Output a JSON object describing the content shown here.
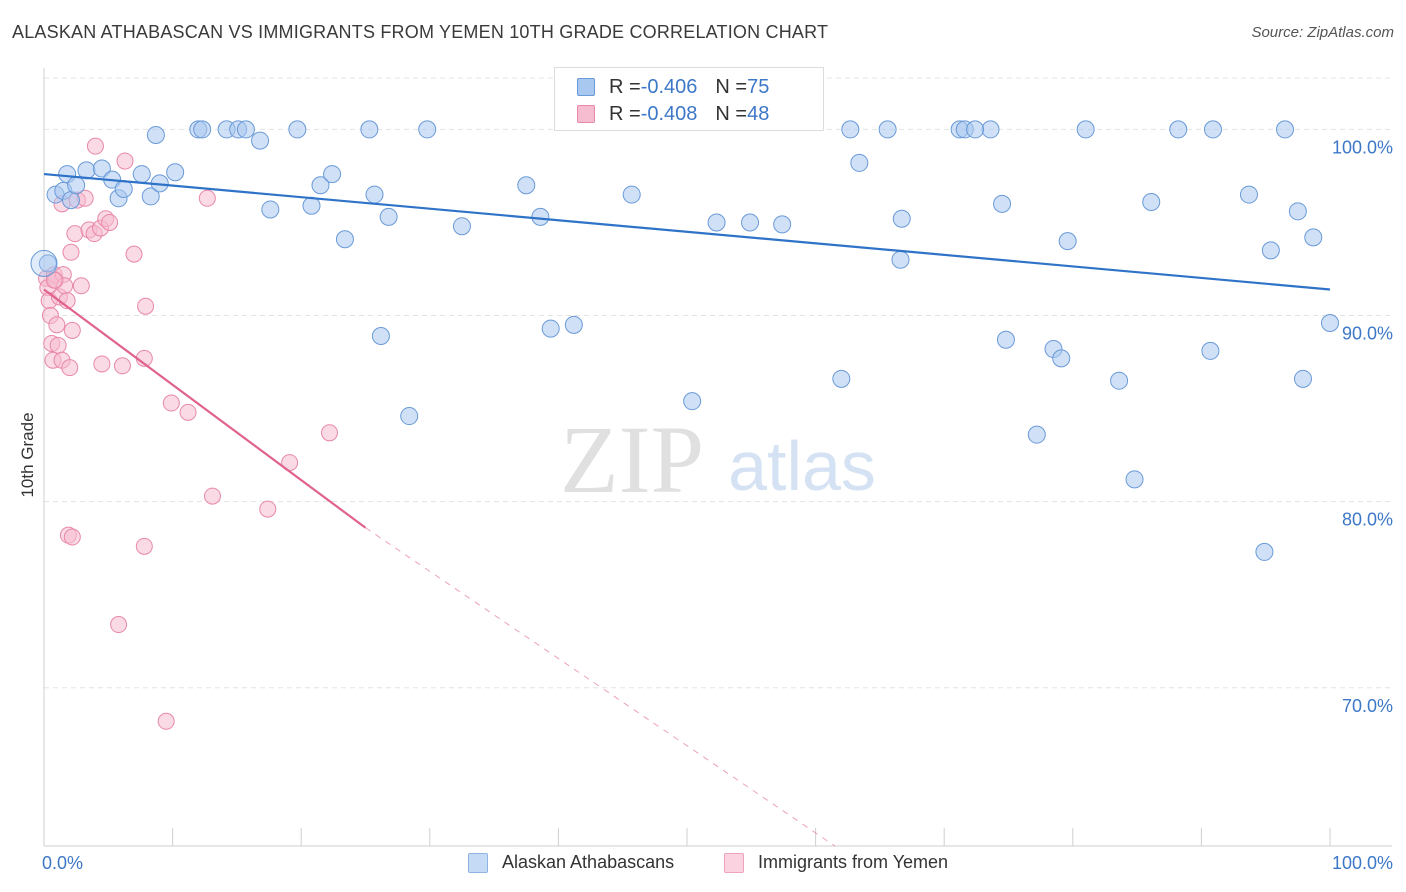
{
  "title": "ALASKAN ATHABASCAN VS IMMIGRANTS FROM YEMEN 10TH GRADE CORRELATION CHART",
  "source": "Source: ZipAtlas.com",
  "watermark": {
    "zip": "ZIP",
    "atlas": "atlas"
  },
  "legend": {
    "row1": {
      "r_label": "R = ",
      "r_value": "-0.406",
      "n_label": "N = ",
      "n_value": "75"
    },
    "row2": {
      "r_label": "R = ",
      "r_value": "-0.408",
      "n_label": "N = ",
      "n_value": "48"
    }
  },
  "bottom_legend": {
    "series1": "Alaskan Athabascans",
    "series2": "Immigrants from Yemen"
  },
  "colors": {
    "blue_fill": "#a9c8f0",
    "blue_stroke": "#6a9ad8",
    "blue_line": "#2f73c9",
    "pink_fill": "#f6bcd0",
    "pink_stroke": "#e888a8",
    "pink_line": "#e0628e",
    "axis_label": "#3d78c8"
  },
  "chart_data": {
    "type": "scatter",
    "xlabel": "",
    "ylabel": "10th Grade",
    "x_tick_labels": [
      "0.0%",
      "100.0%"
    ],
    "y_tick_labels": [
      "100.0%",
      "90.0%",
      "80.0%",
      "70.0%"
    ],
    "y_ticks": [
      100,
      90,
      80,
      70
    ],
    "xlim": [
      0,
      100
    ],
    "ylim": [
      61.5,
      103.3
    ],
    "grid": true,
    "series": [
      {
        "name": "Alaskan Athabascans",
        "color": "#a9c8f0",
        "r": -0.406,
        "n": 75,
        "trend": {
          "x": [
            0,
            100
          ],
          "y": [
            97.6,
            91.4
          ]
        },
        "points": [
          [
            0.3,
            92.8
          ],
          [
            0.9,
            96.5
          ],
          [
            1.5,
            96.7
          ],
          [
            1.8,
            97.6
          ],
          [
            2.1,
            96.2
          ],
          [
            2.5,
            97.0
          ],
          [
            3.3,
            97.8
          ],
          [
            4.5,
            97.9
          ],
          [
            5.8,
            96.3
          ],
          [
            5.3,
            97.3
          ],
          [
            7.6,
            97.6
          ],
          [
            6.2,
            96.8
          ],
          [
            8.3,
            96.4
          ],
          [
            9.0,
            97.1
          ],
          [
            10.2,
            97.7
          ],
          [
            8.7,
            99.7
          ],
          [
            12.0,
            100.0
          ],
          [
            12.3,
            100.0
          ],
          [
            14.2,
            100.0
          ],
          [
            15.1,
            100.0
          ],
          [
            15.7,
            100.0
          ],
          [
            16.8,
            99.4
          ],
          [
            17.6,
            95.7
          ],
          [
            19.7,
            100.0
          ],
          [
            20.8,
            95.9
          ],
          [
            21.5,
            97.0
          ],
          [
            22.4,
            97.6
          ],
          [
            23.4,
            94.1
          ],
          [
            25.3,
            100.0
          ],
          [
            25.7,
            96.5
          ],
          [
            26.2,
            88.9
          ],
          [
            26.8,
            95.3
          ],
          [
            28.4,
            84.6
          ],
          [
            29.8,
            100.0
          ],
          [
            32.5,
            94.8
          ],
          [
            37.5,
            97.0
          ],
          [
            38.6,
            95.3
          ],
          [
            39.4,
            89.3
          ],
          [
            41.2,
            89.5
          ],
          [
            45.7,
            96.5
          ],
          [
            50.4,
            85.4
          ],
          [
            52.3,
            95.0
          ],
          [
            54.9,
            95.0
          ],
          [
            57.4,
            94.9
          ],
          [
            62.0,
            86.6
          ],
          [
            62.7,
            100.0
          ],
          [
            66.6,
            93.0
          ],
          [
            66.7,
            95.2
          ],
          [
            71.2,
            100.0
          ],
          [
            71.6,
            100.0
          ],
          [
            73.6,
            100.0
          ],
          [
            74.5,
            96.0
          ],
          [
            74.8,
            88.7
          ],
          [
            77.2,
            83.6
          ],
          [
            78.5,
            88.2
          ],
          [
            79.1,
            87.7
          ],
          [
            79.6,
            94.0
          ],
          [
            81.0,
            100.0
          ],
          [
            83.6,
            86.5
          ],
          [
            84.8,
            81.2
          ],
          [
            86.1,
            96.1
          ],
          [
            88.2,
            100.0
          ],
          [
            90.7,
            88.1
          ],
          [
            90.9,
            100.0
          ],
          [
            93.7,
            96.5
          ],
          [
            94.9,
            77.3
          ],
          [
            95.4,
            93.5
          ],
          [
            96.5,
            100.0
          ],
          [
            97.5,
            95.6
          ],
          [
            97.9,
            86.6
          ],
          [
            72.4,
            100.0
          ],
          [
            63.4,
            98.2
          ],
          [
            65.6,
            100.0
          ],
          [
            98.7,
            94.2
          ],
          [
            100.0,
            89.6
          ]
        ]
      },
      {
        "name": "Immigrants from Yemen",
        "color": "#f6bcd0",
        "r": -0.408,
        "n": 48,
        "trend": {
          "x": [
            0,
            25.0
          ],
          "y": [
            91.4,
            78.6
          ]
        },
        "trend_dashed": {
          "x": [
            25.0,
            61.5
          ],
          "y": [
            78.6,
            61.5
          ]
        },
        "points": [
          [
            0.2,
            92.0
          ],
          [
            0.3,
            91.5
          ],
          [
            0.4,
            90.8
          ],
          [
            0.5,
            90.0
          ],
          [
            0.6,
            88.5
          ],
          [
            0.7,
            87.6
          ],
          [
            0.8,
            92.2
          ],
          [
            0.9,
            91.9
          ],
          [
            1.1,
            88.4
          ],
          [
            1.2,
            91.0
          ],
          [
            1.4,
            87.6
          ],
          [
            1.5,
            92.2
          ],
          [
            1.6,
            91.6
          ],
          [
            1.8,
            90.8
          ],
          [
            2.0,
            87.2
          ],
          [
            2.2,
            89.2
          ],
          [
            2.4,
            94.4
          ],
          [
            2.6,
            96.2
          ],
          [
            1.4,
            96.0
          ],
          [
            2.1,
            93.4
          ],
          [
            2.9,
            91.6
          ],
          [
            3.2,
            96.3
          ],
          [
            3.5,
            94.6
          ],
          [
            3.9,
            94.4
          ],
          [
            4.0,
            99.1
          ],
          [
            4.4,
            94.7
          ],
          [
            4.8,
            95.2
          ],
          [
            5.1,
            95.0
          ],
          [
            6.1,
            87.3
          ],
          [
            6.3,
            98.3
          ],
          [
            7.0,
            93.3
          ],
          [
            7.8,
            87.7
          ],
          [
            7.9,
            90.5
          ],
          [
            9.9,
            85.3
          ],
          [
            11.2,
            84.8
          ],
          [
            12.7,
            96.3
          ],
          [
            13.1,
            80.3
          ],
          [
            17.4,
            79.6
          ],
          [
            19.1,
            82.1
          ],
          [
            22.2,
            83.7
          ],
          [
            1.9,
            78.2
          ],
          [
            2.2,
            78.1
          ],
          [
            7.8,
            77.6
          ],
          [
            5.8,
            73.4
          ],
          [
            9.5,
            68.2
          ],
          [
            1.0,
            89.5
          ],
          [
            0.8,
            91.9
          ],
          [
            4.5,
            87.4
          ]
        ]
      }
    ]
  }
}
